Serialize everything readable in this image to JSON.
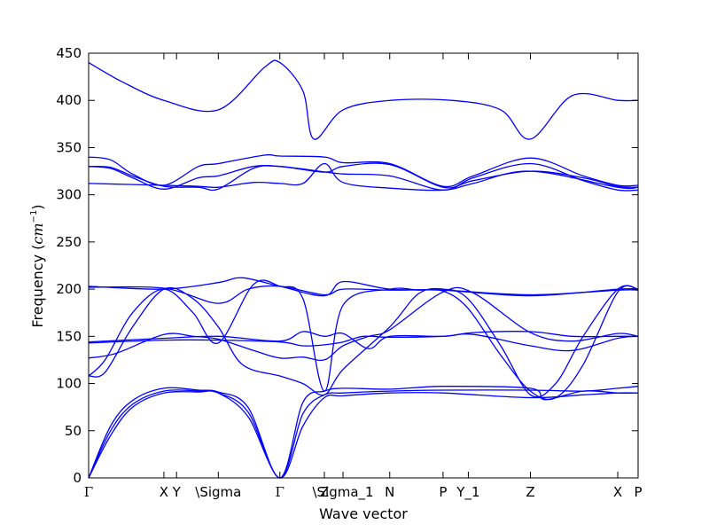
{
  "chart_data": {
    "type": "line",
    "title": "",
    "xlabel": "Wave vector",
    "ylabel": "Frequency (",
    "ylabel_unit": "cm",
    "ylabel_exp": "−1",
    "ylabel_close": ")",
    "ylim": [
      0,
      450
    ],
    "xlim": [
      0,
      1
    ],
    "yticks": [
      0,
      50,
      100,
      150,
      200,
      250,
      300,
      350,
      400,
      450
    ],
    "xticks": [
      {
        "label": "Γ",
        "x": 0.0
      },
      {
        "label": "X",
        "x": 0.137
      },
      {
        "label": "Y",
        "x": 0.16
      },
      {
        "label": "\\Sigma",
        "x": 0.236
      },
      {
        "label": "Γ",
        "x": 0.348
      },
      {
        "label": "Z",
        "x": 0.429
      },
      {
        "label": "\\Sigma_1",
        "x": 0.463
      },
      {
        "label": "N",
        "x": 0.548
      },
      {
        "label": "P",
        "x": 0.645
      },
      {
        "label": "Y_1",
        "x": 0.691
      },
      {
        "label": "Z",
        "x": 0.804
      },
      {
        "label": "X",
        "x": 0.963
      },
      {
        "label": "P",
        "x": 1.0
      }
    ],
    "line_color": "#0000ff",
    "grid": false,
    "series": [
      {
        "x": [
          0,
          0.06,
          0.137,
          0.236,
          0.32,
          0.348,
          0.39,
          0.41,
          0.463,
          0.55,
          0.66,
          0.75,
          0.804,
          0.88,
          0.963,
          1.0
        ],
        "y": [
          440,
          420,
          400,
          390,
          435,
          440,
          410,
          359,
          390,
          400,
          400,
          390,
          359,
          405,
          400,
          400
        ]
      },
      {
        "x": [
          0,
          0.04,
          0.08,
          0.137,
          0.2,
          0.236,
          0.32,
          0.348,
          0.429,
          0.463,
          0.548,
          0.645,
          0.7,
          0.804,
          0.9,
          0.963,
          1.0
        ],
        "y": [
          340,
          337,
          322,
          310,
          330,
          333,
          342,
          341,
          340,
          334,
          333,
          309,
          320,
          339,
          320,
          310,
          310
        ]
      },
      {
        "x": [
          0,
          0.04,
          0.08,
          0.137,
          0.2,
          0.236,
          0.3,
          0.348,
          0.42,
          0.463,
          0.548,
          0.645,
          0.7,
          0.804,
          0.9,
          0.963,
          1.0
        ],
        "y": [
          330,
          328,
          318,
          306,
          318,
          320,
          330,
          330,
          325,
          322,
          320,
          305,
          318,
          333,
          315,
          305,
          305
        ]
      },
      {
        "x": [
          0,
          0.04,
          0.08,
          0.137,
          0.2,
          0.236,
          0.3,
          0.348,
          0.429,
          0.463,
          0.548,
          0.645,
          0.7,
          0.804,
          0.9,
          0.963,
          1.0
        ],
        "y": [
          330,
          329,
          320,
          309,
          308,
          306,
          328,
          330,
          324,
          330,
          332,
          308,
          315,
          325,
          318,
          309,
          308
        ]
      },
      {
        "x": [
          0,
          0.137,
          0.2,
          0.236,
          0.3,
          0.348,
          0.39,
          0.429,
          0.463,
          0.548,
          0.645,
          0.7,
          0.804,
          0.963,
          1.0
        ],
        "y": [
          312,
          310,
          309,
          308,
          313,
          312,
          312,
          333,
          313,
          307,
          305,
          312,
          325,
          308,
          308
        ]
      },
      {
        "x": [
          0,
          0.137,
          0.236,
          0.28,
          0.348,
          0.429,
          0.463,
          0.548,
          0.645,
          0.804,
          0.963,
          1.0
        ],
        "y": [
          203,
          200,
          207,
          212,
          203,
          193,
          208,
          200,
          199,
          193,
          200,
          200
        ]
      },
      {
        "x": [
          0,
          0.137,
          0.236,
          0.29,
          0.348,
          0.429,
          0.463,
          0.548,
          0.645,
          0.804,
          0.963,
          1.0
        ],
        "y": [
          202,
          201,
          185,
          200,
          203,
          194,
          200,
          199,
          199,
          194,
          199,
          199
        ]
      },
      {
        "x": [
          0,
          0.03,
          0.08,
          0.137,
          0.19,
          0.236,
          0.28,
          0.348,
          0.39,
          0.429,
          0.463,
          0.548,
          0.6,
          0.645,
          0.69,
          0.75,
          0.804,
          0.85,
          0.9,
          0.963,
          1.0
        ],
        "y": [
          108,
          112,
          160,
          200,
          190,
          160,
          120,
          108,
          100,
          88,
          115,
          160,
          195,
          200,
          190,
          140,
          88,
          100,
          150,
          200,
          200
        ]
      },
      {
        "x": [
          0,
          0.03,
          0.08,
          0.137,
          0.19,
          0.236,
          0.3,
          0.348,
          0.39,
          0.429,
          0.463,
          0.548,
          0.6,
          0.645,
          0.69,
          0.75,
          0.804,
          0.85,
          0.9,
          0.963,
          1.0
        ],
        "y": [
          108,
          125,
          175,
          200,
          175,
          143,
          205,
          203,
          190,
          92,
          183,
          200,
          199,
          198,
          180,
          130,
          92,
          85,
          120,
          197,
          200
        ]
      },
      {
        "x": [
          0,
          0.05,
          0.137,
          0.19,
          0.236,
          0.3,
          0.348,
          0.39,
          0.429,
          0.463,
          0.51,
          0.548,
          0.645,
          0.7,
          0.804,
          0.88,
          0.963,
          1.0
        ],
        "y": [
          127,
          132,
          152,
          150,
          147,
          135,
          127,
          128,
          125,
          140,
          150,
          157,
          197,
          196,
          154,
          145,
          153,
          150
        ]
      },
      {
        "x": [
          0,
          0.137,
          0.236,
          0.348,
          0.39,
          0.429,
          0.463,
          0.51,
          0.548,
          0.645,
          0.7,
          0.804,
          0.88,
          0.963,
          1.0
        ],
        "y": [
          144,
          148,
          150,
          145,
          155,
          150,
          153,
          137,
          150,
          150,
          154,
          155,
          150,
          150,
          150
        ]
      },
      {
        "x": [
          0,
          0.137,
          0.236,
          0.348,
          0.39,
          0.429,
          0.463,
          0.5,
          0.548,
          0.645,
          0.7,
          0.804,
          0.88,
          0.963,
          1.0
        ],
        "y": [
          143,
          146,
          146,
          144,
          140,
          141,
          144,
          150,
          149,
          150,
          152,
          140,
          135,
          148,
          150
        ]
      },
      {
        "x": [
          0,
          0.04,
          0.08,
          0.137,
          0.2,
          0.236,
          0.29,
          0.348,
          0.39,
          0.429,
          0.463,
          0.548,
          0.645,
          0.804,
          0.83,
          0.9,
          0.963,
          1.0
        ],
        "y": [
          0,
          55,
          82,
          95,
          93,
          91,
          75,
          0,
          80,
          92,
          95,
          94,
          97,
          95,
          83,
          92,
          90,
          90
        ]
      },
      {
        "x": [
          0,
          0.04,
          0.08,
          0.137,
          0.2,
          0.236,
          0.29,
          0.348,
          0.39,
          0.429,
          0.463,
          0.548,
          0.645,
          0.804,
          0.9,
          0.963,
          1.0
        ],
        "y": [
          0,
          50,
          78,
          92,
          92,
          90,
          70,
          0,
          68,
          88,
          90,
          92,
          93,
          93,
          92,
          95,
          97
        ]
      },
      {
        "x": [
          0,
          0.04,
          0.08,
          0.137,
          0.2,
          0.236,
          0.29,
          0.348,
          0.39,
          0.429,
          0.463,
          0.548,
          0.645,
          0.804,
          0.9,
          0.963,
          1.0
        ],
        "y": [
          0,
          45,
          75,
          90,
          91,
          90,
          65,
          0,
          55,
          85,
          87,
          90,
          90,
          85,
          88,
          90,
          90
        ]
      }
    ]
  }
}
